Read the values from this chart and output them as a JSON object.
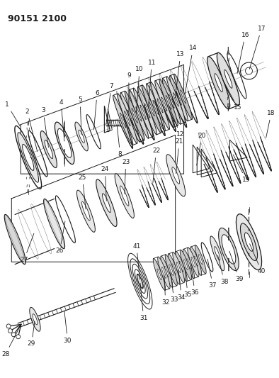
{
  "title": "90151 2100",
  "bg_color": "#ffffff",
  "line_color": "#1a1a1a",
  "fig_width": 3.94,
  "fig_height": 5.33,
  "dpi": 100
}
